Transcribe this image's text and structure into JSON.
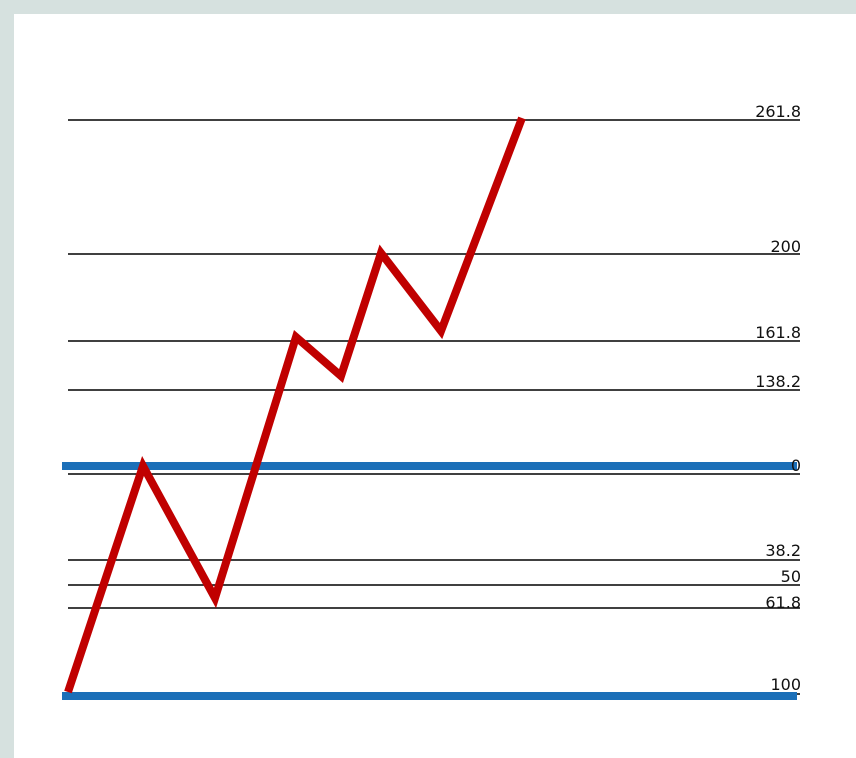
{
  "chart_data": {
    "type": "line",
    "colors": {
      "price_line": "#c00000",
      "anchor_line": "#1b6fb8",
      "level_line": "#000000"
    },
    "anchors": [
      {
        "label": "0",
        "value": 0
      },
      {
        "label": "100",
        "value": 100
      }
    ],
    "levels": [
      {
        "label": "261.8",
        "value": 261.8
      },
      {
        "label": "200",
        "value": 200
      },
      {
        "label": "161.8",
        "value": 161.8
      },
      {
        "label": "138.2",
        "value": 138.2
      },
      {
        "label": "0",
        "value": 0
      },
      {
        "label": "38.2",
        "value": 38.2
      },
      {
        "label": "50",
        "value": 50
      },
      {
        "label": "61.8",
        "value": 61.8
      },
      {
        "label": "100",
        "value": 100
      }
    ],
    "series": [
      {
        "values": [
          100,
          0,
          61.8,
          161.8,
          138.2,
          200,
          161.8,
          261.8
        ]
      }
    ]
  }
}
